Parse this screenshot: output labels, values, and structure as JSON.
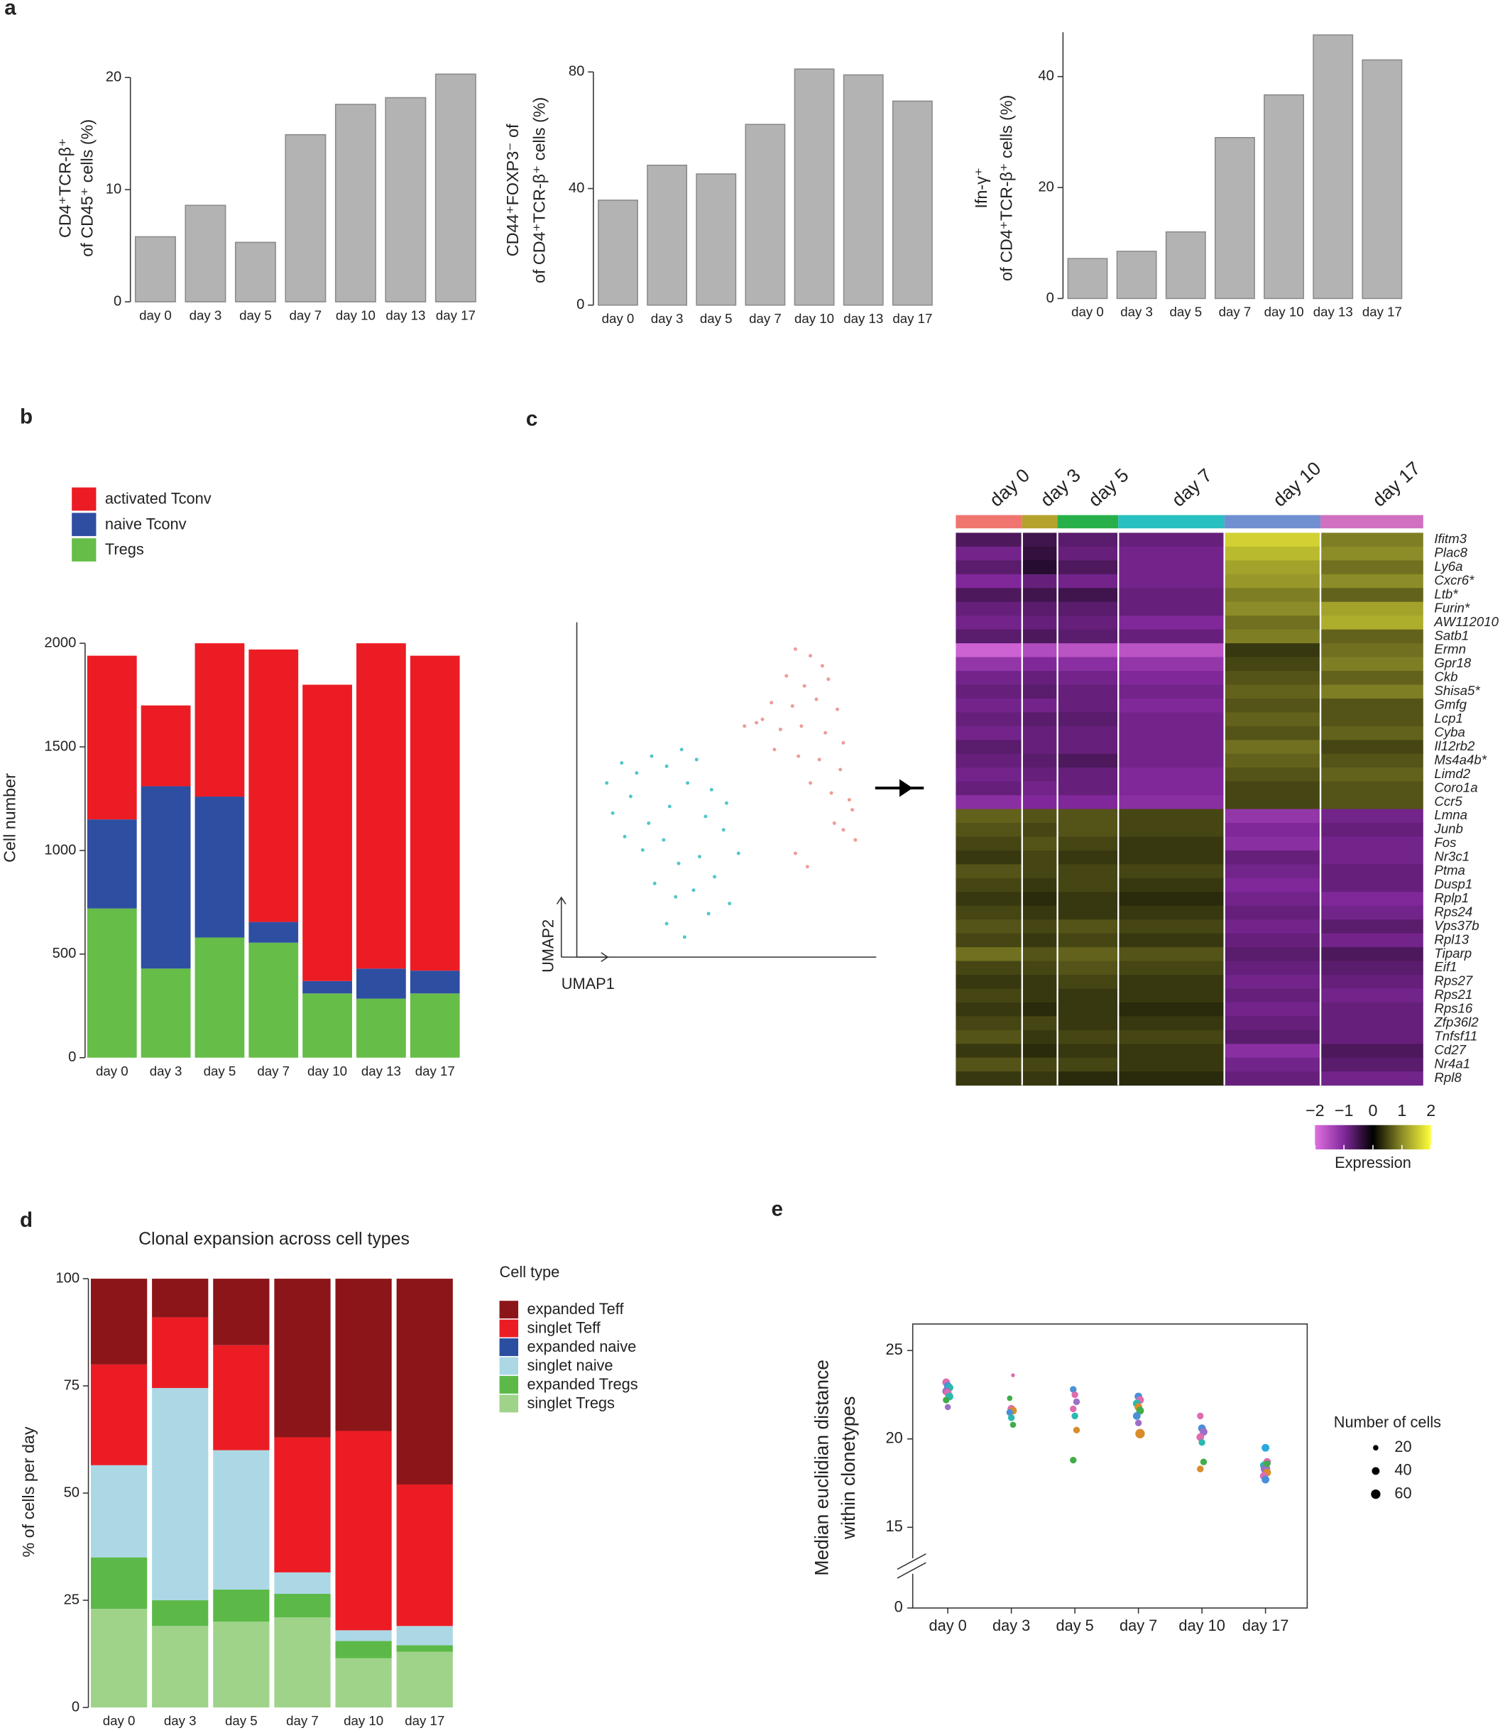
{
  "panel_labels": [
    "a",
    "b",
    "c",
    "d",
    "e"
  ],
  "chart_data": [
    {
      "type": "bar",
      "ylabel": [
        "CD4⁺TCR-β⁺",
        "of CD45⁺ cells (%)"
      ],
      "categories": [
        "day 0",
        "day 3",
        "day 5",
        "day 7",
        "day 10",
        "day 13",
        "day 17"
      ],
      "values": [
        5.8,
        8.6,
        5.3,
        14.9,
        17.6,
        18.2,
        20.3
      ],
      "color": "#b3b3b3",
      "ylim": [
        0,
        20
      ],
      "yticks": [
        0,
        10,
        20
      ]
    },
    {
      "type": "bar",
      "ylabel": [
        "CD44⁺FOXP3⁻ of",
        "of CD4⁺TCR-β⁺ cells (%)"
      ],
      "categories": [
        "day 0",
        "day 3",
        "day 5",
        "day 7",
        "day 10",
        "day 13",
        "day 17"
      ],
      "values": [
        36,
        48,
        45,
        62,
        81,
        79,
        70
      ],
      "color": "#b3b3b3",
      "ylim": [
        0,
        80
      ],
      "yticks": [
        0,
        40,
        80
      ]
    },
    {
      "type": "bar",
      "ylabel": [
        "Ifn-γ⁺",
        "of CD4⁺TCR-β⁺ cells (%)"
      ],
      "categories": [
        "day 0",
        "day 3",
        "day 5",
        "day 7",
        "day 10",
        "day 13",
        "day 17"
      ],
      "values": [
        7.2,
        8.5,
        12,
        29,
        36.7,
        47.5,
        43
      ],
      "color": "#b3b3b3",
      "ylim": [
        0,
        48
      ],
      "yticks": [
        0,
        20,
        40
      ]
    },
    {
      "type": "stacked_bar",
      "ylabel": [
        "Cell number"
      ],
      "categories": [
        "day 0",
        "day 3",
        "day 5",
        "day 7",
        "day 10",
        "day 13",
        "day 17"
      ],
      "series": [
        {
          "name": "activated Tconv",
          "color": "#ec1c24",
          "values": [
            790,
            390,
            740,
            1315,
            1430,
            1570,
            1520
          ]
        },
        {
          "name": "naive Tconv",
          "color": "#2e4ea2",
          "values": [
            430,
            880,
            680,
            100,
            60,
            145,
            110
          ]
        },
        {
          "name": "Tregs",
          "color": "#66bd47",
          "values": [
            720,
            430,
            580,
            555,
            310,
            285,
            310
          ]
        }
      ],
      "ylim": [
        0,
        2000
      ],
      "yticks": [
        0,
        500,
        1000,
        1500,
        2000
      ]
    },
    {
      "type": "scatter",
      "xlabel": "UMAP1",
      "ylabel": "UMAP2",
      "xlim": [
        0,
        10
      ],
      "ylim": [
        0,
        10
      ],
      "series": [
        {
          "color": "#35bcc2",
          "x": [
            1.0,
            1.5,
            2.0,
            2.5,
            3.0,
            3.5,
            4.0,
            4.5,
            5.0,
            1.2,
            1.8,
            2.4,
            3.1,
            3.7,
            4.3,
            4.9,
            5.4,
            1.6,
            2.2,
            2.9,
            3.4,
            4.1,
            4.6,
            2.6,
            3.3,
            3.9,
            4.4,
            5.1,
            3.0,
            3.6
          ],
          "values": [
            5.2,
            5.8,
            5.5,
            6.0,
            5.7,
            6.2,
            5.9,
            5.0,
            4.6,
            4.3,
            4.8,
            4.0,
            4.5,
            5.2,
            4.2,
            3.8,
            3.1,
            3.6,
            3.2,
            3.5,
            2.8,
            3.0,
            2.4,
            2.2,
            1.8,
            2.0,
            1.3,
            1.6,
            1.0,
            0.6
          ]
        },
        {
          "color": "#ec8a86",
          "x": [
            7.3,
            7.8,
            8.2,
            7.0,
            7.6,
            8.4,
            6.5,
            7.2,
            8.0,
            8.7,
            6.0,
            6.8,
            7.5,
            8.3,
            8.9,
            5.6,
            6.6,
            7.4,
            8.1,
            8.8,
            7.8,
            8.5,
            9.1,
            8.6,
            9.2,
            7.3,
            7.7,
            8.9,
            9.3,
            6.2
          ],
          "values": [
            9.2,
            9.0,
            8.7,
            8.4,
            8.1,
            8.3,
            7.6,
            7.5,
            7.7,
            7.4,
            7.0,
            6.8,
            6.9,
            6.7,
            6.4,
            6.9,
            6.2,
            6.0,
            5.9,
            5.6,
            5.2,
            4.9,
            4.7,
            4.0,
            4.4,
            3.1,
            2.7,
            3.8,
            3.5,
            7.1
          ]
        }
      ]
    },
    {
      "type": "heatmap",
      "columns": [
        "day 0",
        "day 3",
        "day 5",
        "day 7",
        "day 10",
        "day 17"
      ],
      "column_colors": [
        "#f07470",
        "#b5a22c",
        "#27b04a",
        "#27bfbf",
        "#6f8fd0",
        "#d070c0"
      ],
      "rows": [
        "Ifitm3",
        "Plac8",
        "Ly6a",
        "Cxcr6*",
        "Ltb*",
        "Furin*",
        "AW112010",
        "Satb1",
        "Ermn",
        "Gpr18",
        "Ckb",
        "Shisa5*",
        "Gmfg",
        "Lcp1",
        "Cyba",
        "Il12rb2",
        "Ms4a4b*",
        "Limd2",
        "Coro1a",
        "Ccr5",
        "Lmna",
        "Junb",
        "Fos",
        "Nr3c1",
        "Ptma",
        "Dusp1",
        "Rplp1",
        "Rps24",
        "Vps37b",
        "Rpl13",
        "Tiparp",
        "Eif1",
        "Rps27",
        "Rps21",
        "Rps16",
        "Zfp36l2",
        "Tnfsf11",
        "Cd27",
        "Nr4a1",
        "Rpl8"
      ],
      "values": [
        [
          -0.6,
          -0.5,
          -0.7,
          -0.8,
          1.6,
          0.9
        ],
        [
          -0.9,
          -0.4,
          -0.8,
          -0.9,
          1.4,
          1.0
        ],
        [
          -0.7,
          -0.3,
          -0.6,
          -0.9,
          1.2,
          0.8
        ],
        [
          -1.0,
          -0.8,
          -0.9,
          -0.9,
          1.1,
          1.0
        ],
        [
          -0.6,
          -0.5,
          -0.5,
          -0.8,
          0.9,
          0.7
        ],
        [
          -0.8,
          -0.7,
          -0.7,
          -0.8,
          1.0,
          1.2
        ],
        [
          -0.9,
          -0.8,
          -0.8,
          -1.0,
          0.8,
          1.3
        ],
        [
          -0.7,
          -0.6,
          -0.7,
          -0.8,
          0.9,
          0.7
        ],
        [
          -1.8,
          -1.5,
          -1.6,
          -1.6,
          0.4,
          0.8
        ],
        [
          -1.2,
          -1.0,
          -1.1,
          -1.2,
          0.5,
          0.9
        ],
        [
          -0.9,
          -0.8,
          -0.9,
          -1.0,
          0.6,
          0.7
        ],
        [
          -0.8,
          -0.7,
          -0.8,
          -0.9,
          0.7,
          0.9
        ],
        [
          -0.9,
          -0.9,
          -0.8,
          -1.0,
          0.6,
          0.6
        ],
        [
          -0.8,
          -0.7,
          -0.7,
          -0.9,
          0.7,
          0.6
        ],
        [
          -0.9,
          -0.8,
          -0.8,
          -0.9,
          0.6,
          0.7
        ],
        [
          -0.7,
          -0.8,
          -0.8,
          -0.9,
          0.8,
          0.5
        ],
        [
          -0.8,
          -0.7,
          -0.6,
          -0.9,
          0.7,
          0.6
        ],
        [
          -0.9,
          -0.8,
          -0.8,
          -1.0,
          0.6,
          0.7
        ],
        [
          -0.8,
          -0.9,
          -0.8,
          -1.0,
          0.5,
          0.6
        ],
        [
          -1.1,
          -1.0,
          -1.0,
          -1.1,
          0.5,
          0.6
        ],
        [
          0.7,
          0.6,
          0.6,
          0.5,
          -1.2,
          -0.9
        ],
        [
          0.6,
          0.5,
          0.6,
          0.5,
          -1.0,
          -0.8
        ],
        [
          0.5,
          0.6,
          0.5,
          0.4,
          -1.1,
          -0.9
        ],
        [
          0.4,
          0.5,
          0.4,
          0.4,
          -0.8,
          -0.9
        ],
        [
          0.6,
          0.5,
          0.5,
          0.5,
          -0.9,
          -0.8
        ],
        [
          0.5,
          0.4,
          0.5,
          0.4,
          -1.0,
          -0.8
        ],
        [
          0.4,
          0.3,
          0.4,
          0.3,
          -0.9,
          -1.0
        ],
        [
          0.5,
          0.4,
          0.4,
          0.4,
          -0.8,
          -0.9
        ],
        [
          0.6,
          0.5,
          0.6,
          0.5,
          -0.9,
          -0.7
        ],
        [
          0.5,
          0.4,
          0.5,
          0.4,
          -0.8,
          -0.9
        ],
        [
          0.8,
          0.6,
          0.7,
          0.6,
          -0.7,
          -0.6
        ],
        [
          0.5,
          0.5,
          0.6,
          0.5,
          -0.8,
          -0.7
        ],
        [
          0.4,
          0.4,
          0.5,
          0.4,
          -0.9,
          -0.8
        ],
        [
          0.5,
          0.4,
          0.4,
          0.4,
          -0.8,
          -0.9
        ],
        [
          0.4,
          0.3,
          0.4,
          0.3,
          -0.9,
          -0.8
        ],
        [
          0.5,
          0.5,
          0.4,
          0.4,
          -0.8,
          -0.8
        ],
        [
          0.6,
          0.4,
          0.5,
          0.5,
          -0.7,
          -0.8
        ],
        [
          0.4,
          0.3,
          0.4,
          0.4,
          -1.1,
          -0.6
        ],
        [
          0.6,
          0.5,
          0.5,
          0.4,
          -0.9,
          -0.7
        ],
        [
          0.4,
          0.4,
          0.3,
          0.3,
          -0.8,
          -0.9
        ]
      ],
      "colorbar": {
        "label": "Expression",
        "lim": [
          -2,
          2
        ],
        "ticks": [
          {
            "value": -2,
            "label": "−2"
          },
          {
            "value": -1,
            "label": "−1"
          },
          0,
          1,
          2
        ],
        "colors": [
          "#e070e0",
          "#80289a",
          "#000000",
          "#8c8c28",
          "#ffff3a"
        ]
      }
    },
    {
      "type": "stacked_bar",
      "title": "Clonal expansion across cell types",
      "ylabel": [
        "% of cells per day"
      ],
      "legend_title": "Cell type",
      "categories": [
        "day 0",
        "day 3",
        "day 5",
        "day 7",
        "day 10",
        "day 17"
      ],
      "series": [
        {
          "name": "expanded Teff",
          "color": "#8b1518",
          "values": [
            20,
            9,
            15.5,
            37,
            35.5,
            48
          ]
        },
        {
          "name": "singlet Teff",
          "color": "#ec1c24",
          "values": [
            23.5,
            16.5,
            24.5,
            31.5,
            46.5,
            33
          ]
        },
        {
          "name": "expanded naive",
          "color": "#2a4ea0",
          "values": [
            0,
            0,
            0,
            0,
            0,
            0
          ]
        },
        {
          "name": "singlet naive",
          "color": "#acd8e6",
          "values": [
            21.5,
            49.5,
            32.5,
            5,
            2.5,
            4.5
          ]
        },
        {
          "name": "expanded Tregs",
          "color": "#5cb948",
          "values": [
            12,
            6,
            7.5,
            5.5,
            4,
            1.5
          ]
        },
        {
          "name": "singlet Tregs",
          "color": "#9fd38a",
          "values": [
            23,
            19,
            20,
            21,
            11.5,
            13
          ]
        }
      ],
      "ylim": [
        0,
        100
      ],
      "yticks": [
        0,
        25,
        50,
        75,
        100
      ]
    },
    {
      "type": "dot",
      "ylabel": [
        "Median euclidian distance",
        "within clonetypes"
      ],
      "categories": [
        "day 0",
        "day 3",
        "day 5",
        "day 7",
        "day 10",
        "day 17"
      ],
      "ylim": [
        0,
        26.5
      ],
      "ybreak": 15,
      "yticks": [
        0,
        15,
        20,
        25
      ],
      "size_legend_title": "Number of cells",
      "size_legend": [
        20,
        40,
        60
      ],
      "series": [
        {
          "x": [
            "day 0",
            "day 0",
            "day 0",
            "day 0",
            "day 0",
            "day 0",
            "day 0",
            "day 0",
            "day 3",
            "day 3",
            "day 3",
            "day 3",
            "day 3",
            "day 3",
            "day 3",
            "day 5",
            "day 5",
            "day 5",
            "day 5",
            "day 5",
            "day 5",
            "day 5",
            "day 7",
            "day 7",
            "day 7",
            "day 7",
            "day 7",
            "day 7",
            "day 7",
            "day 7",
            "day 10",
            "day 10",
            "day 10",
            "day 10",
            "day 10",
            "day 10",
            "day 10",
            "day 17",
            "day 17",
            "day 17",
            "day 17",
            "day 17",
            "day 17",
            "day 17",
            "day 17"
          ],
          "values": [
            23.2,
            23.0,
            22.9,
            22.7,
            22.6,
            22.4,
            22.2,
            21.8,
            23.6,
            22.3,
            21.7,
            21.6,
            21.5,
            21.2,
            20.8,
            22.8,
            22.5,
            22.1,
            21.7,
            21.3,
            20.5,
            18.8,
            22.4,
            22.2,
            22.0,
            21.8,
            21.6,
            21.3,
            20.9,
            20.3,
            21.3,
            20.6,
            20.4,
            20.1,
            19.8,
            18.7,
            18.3,
            19.5,
            18.7,
            18.5,
            18.3,
            18.1,
            17.9,
            17.7,
            18.6
          ],
          "sizes": [
            40,
            40,
            40,
            40,
            40,
            40,
            30,
            25,
            10,
            20,
            40,
            40,
            30,
            30,
            25,
            30,
            30,
            30,
            30,
            30,
            30,
            30,
            40,
            40,
            40,
            40,
            40,
            40,
            30,
            60,
            30,
            40,
            40,
            40,
            30,
            30,
            30,
            40,
            40,
            40,
            60,
            40,
            40,
            40,
            30
          ],
          "colors": [
            "#e06cb0",
            "#4a90d9",
            "#2ab8b0",
            "#9a70c8",
            "#e06cb0",
            "#2ab8b0",
            "#3fae49",
            "#9a70c8",
            "#e06cb0",
            "#3fae49",
            "#e06cb0",
            "#d98c2a",
            "#4a90d9",
            "#2ab8b0",
            "#3fae49",
            "#4a90d9",
            "#e06cb0",
            "#9a70c8",
            "#e06cb0",
            "#2ab8b0",
            "#d98c2a",
            "#3fae49",
            "#4a90d9",
            "#e06cb0",
            "#2ab8b0",
            "#d98c2a",
            "#3fae49",
            "#4a90d9",
            "#9a70c8",
            "#d98c2a",
            "#e06cb0",
            "#4a90d9",
            "#9a70c8",
            "#e06cb0",
            "#2ab8b0",
            "#3fae49",
            "#d98c2a",
            "#2aa8e0",
            "#e06cb0",
            "#2ab8b0",
            "#9a70c8",
            "#d98c2a",
            "#e06cb0",
            "#4a90d9",
            "#3fae49"
          ]
        }
      ]
    }
  ]
}
